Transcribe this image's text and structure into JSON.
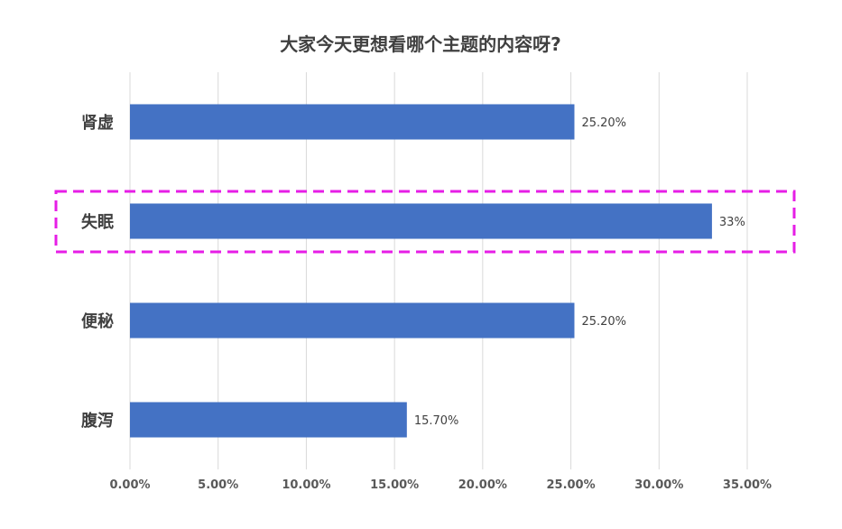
{
  "chart_data": {
    "type": "bar",
    "orientation": "horizontal",
    "title": "大家今天更想看哪个主题的内容呀?",
    "categories": [
      "肾虚",
      "失眠",
      "便秘",
      "腹泻"
    ],
    "values": [
      25.2,
      33,
      25.2,
      15.7
    ],
    "value_labels": [
      "25.20%",
      "33%",
      "25.20%",
      "15.70%"
    ],
    "xlim": [
      0,
      35
    ],
    "x_ticks": [
      0,
      5,
      10,
      15,
      20,
      25,
      30,
      35
    ],
    "x_tick_labels": [
      "0.00%",
      "5.00%",
      "10.00%",
      "15.00%",
      "20.00%",
      "25.00%",
      "30.00%",
      "35.00%"
    ],
    "xlabel": "",
    "ylabel": "",
    "grid": "vertical",
    "legend": "none",
    "highlighted_category": "失眠",
    "colors": {
      "bar": "#4472C4",
      "highlight_border": "#E61EE6",
      "grid": "#D9D9D9"
    }
  }
}
